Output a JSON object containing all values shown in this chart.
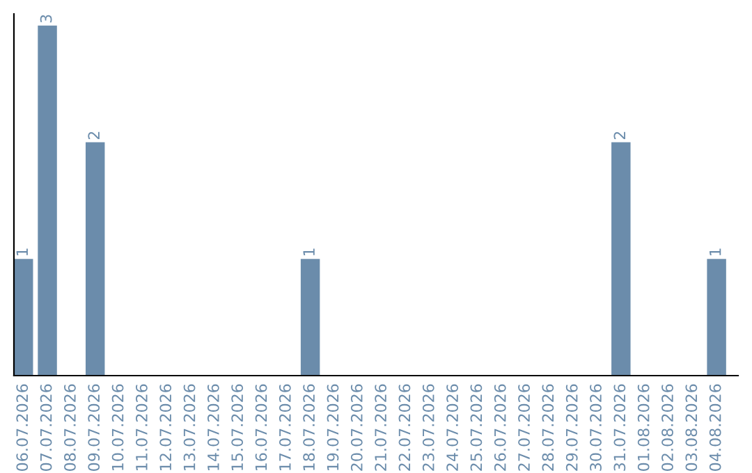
{
  "chart_data": {
    "type": "bar",
    "categories": [
      "06.07.2026",
      "07.07.2026",
      "08.07.2026",
      "09.07.2026",
      "10.07.2026",
      "11.07.2026",
      "12.07.2026",
      "13.07.2026",
      "14.07.2026",
      "15.07.2026",
      "16.07.2026",
      "17.07.2026",
      "18.07.2026",
      "19.07.2026",
      "20.07.2026",
      "21.07.2026",
      "22.07.2026",
      "23.07.2026",
      "24.07.2026",
      "25.07.2026",
      "26.07.2026",
      "27.07.2026",
      "28.07.2026",
      "29.07.2026",
      "30.07.2026",
      "31.07.2026",
      "01.08.2026",
      "02.08.2026",
      "03.08.2026",
      "04.08.2026"
    ],
    "values": [
      1,
      3,
      0,
      2,
      0,
      0,
      0,
      0,
      0,
      0,
      0,
      0,
      1,
      0,
      0,
      0,
      0,
      0,
      0,
      0,
      0,
      0,
      0,
      0,
      0,
      2,
      0,
      0,
      0,
      1
    ],
    "value_labels": [
      "1",
      "3",
      null,
      "2",
      null,
      null,
      null,
      null,
      null,
      null,
      null,
      null,
      "1",
      null,
      null,
      null,
      null,
      null,
      null,
      null,
      null,
      null,
      null,
      null,
      null,
      "2",
      null,
      null,
      null,
      "1"
    ],
    "color": "#6b8cab",
    "ylim": [
      0,
      3.1
    ],
    "tick_labels": "x",
    "grid": false,
    "legend": false
  }
}
